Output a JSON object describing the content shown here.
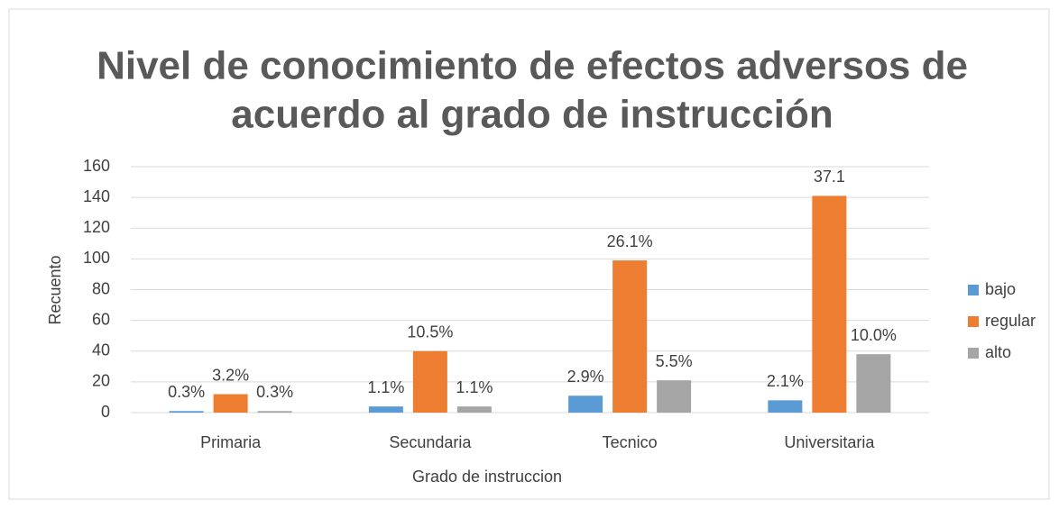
{
  "chart_data": {
    "type": "bar",
    "title": [
      "Nivel de conocimiento de efectos adversos de",
      "acuerdo al grado de instrucción"
    ],
    "x_label": "Grado de instruccion",
    "y_label": "Recuento",
    "categories": [
      "Primaria",
      "Secundaria",
      "Tecnico",
      "Universitaria"
    ],
    "series": [
      {
        "name": "bajo",
        "color": "#5b9bd5",
        "values": [
          1,
          4,
          11,
          8
        ],
        "labels": [
          "0.3%",
          "1.1%",
          "2.9%",
          "2.1%"
        ]
      },
      {
        "name": "regular",
        "color": "#ed7d31",
        "values": [
          12,
          40,
          99,
          141
        ],
        "labels": [
          "3.2%",
          "10.5%",
          "26.1%",
          "37.1"
        ]
      },
      {
        "name": "alto",
        "color": "#a5a5a5",
        "values": [
          1,
          4,
          21,
          38
        ],
        "labels": [
          "0.3%",
          "1.1%",
          "5.5%",
          "10.0%"
        ]
      }
    ],
    "ylim": [
      0,
      160
    ],
    "yticks": [
      0,
      20,
      40,
      60,
      80,
      100,
      120,
      140,
      160
    ],
    "grid": true,
    "legend": "right"
  }
}
